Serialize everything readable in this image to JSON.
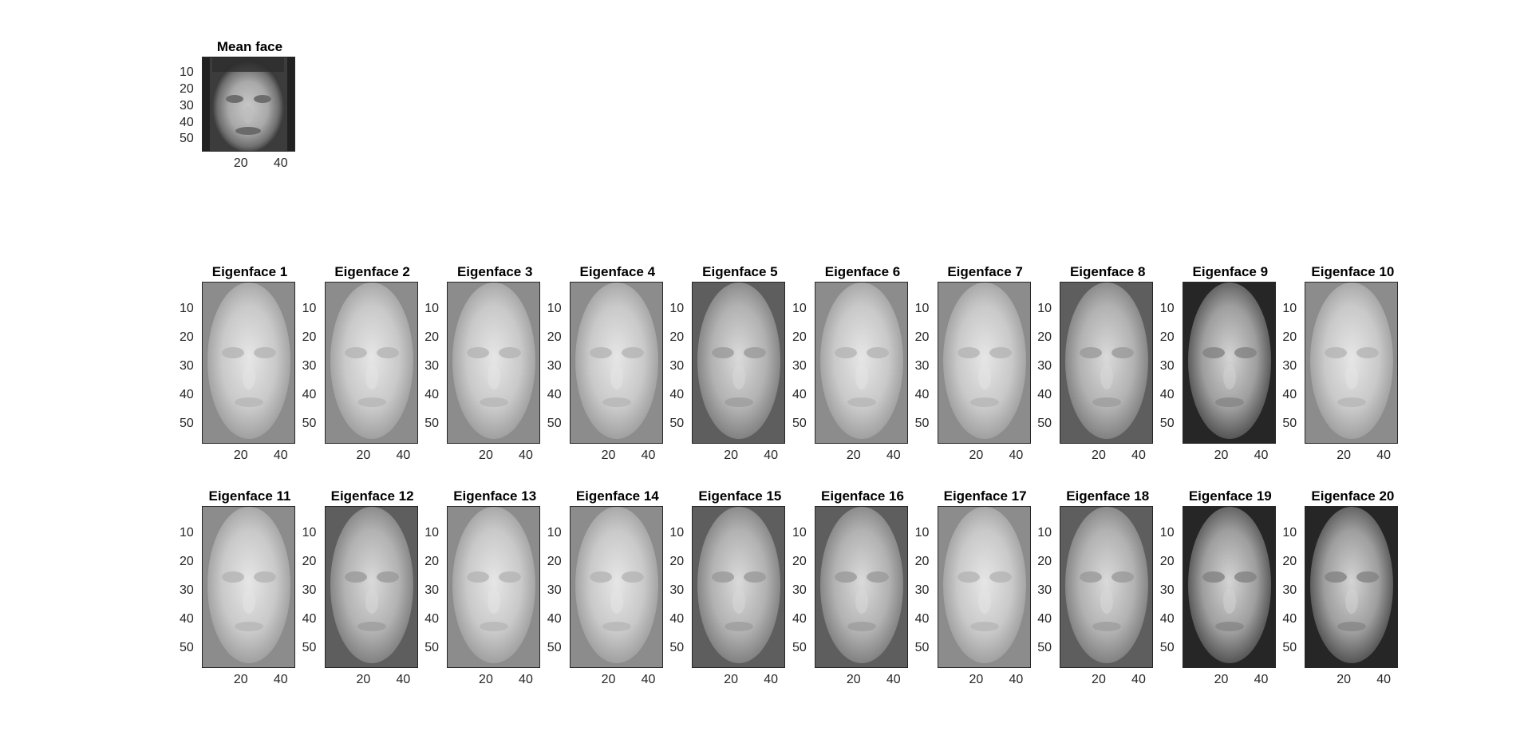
{
  "figure": {
    "mean_face": {
      "title": "Mean face",
      "yticks": [
        "10",
        "20",
        "30",
        "40",
        "50"
      ],
      "xticks": [
        "20",
        "40"
      ],
      "tone": "dark"
    },
    "eigenfaces": [
      {
        "title": "Eigenface 1",
        "tone": "light"
      },
      {
        "title": "Eigenface 2",
        "tone": "light"
      },
      {
        "title": "Eigenface 3",
        "tone": "light"
      },
      {
        "title": "Eigenface 4",
        "tone": "light"
      },
      {
        "title": "Eigenface 5",
        "tone": "medium"
      },
      {
        "title": "Eigenface 6",
        "tone": "light"
      },
      {
        "title": "Eigenface 7",
        "tone": "light"
      },
      {
        "title": "Eigenface 8",
        "tone": "medium"
      },
      {
        "title": "Eigenface 9",
        "tone": "dark"
      },
      {
        "title": "Eigenface 10",
        "tone": "light"
      },
      {
        "title": "Eigenface 11",
        "tone": "light"
      },
      {
        "title": "Eigenface 12",
        "tone": "medium"
      },
      {
        "title": "Eigenface 13",
        "tone": "light"
      },
      {
        "title": "Eigenface 14",
        "tone": "light"
      },
      {
        "title": "Eigenface 15",
        "tone": "medium"
      },
      {
        "title": "Eigenface 16",
        "tone": "medium"
      },
      {
        "title": "Eigenface 17",
        "tone": "light"
      },
      {
        "title": "Eigenface 18",
        "tone": "medium"
      },
      {
        "title": "Eigenface 19",
        "tone": "dark"
      },
      {
        "title": "Eigenface 20",
        "tone": "dark"
      }
    ],
    "eigen_yticks": [
      "10",
      "20",
      "30",
      "40",
      "50"
    ],
    "eigen_xticks": [
      "20",
      "40"
    ],
    "colormap": "gray"
  }
}
